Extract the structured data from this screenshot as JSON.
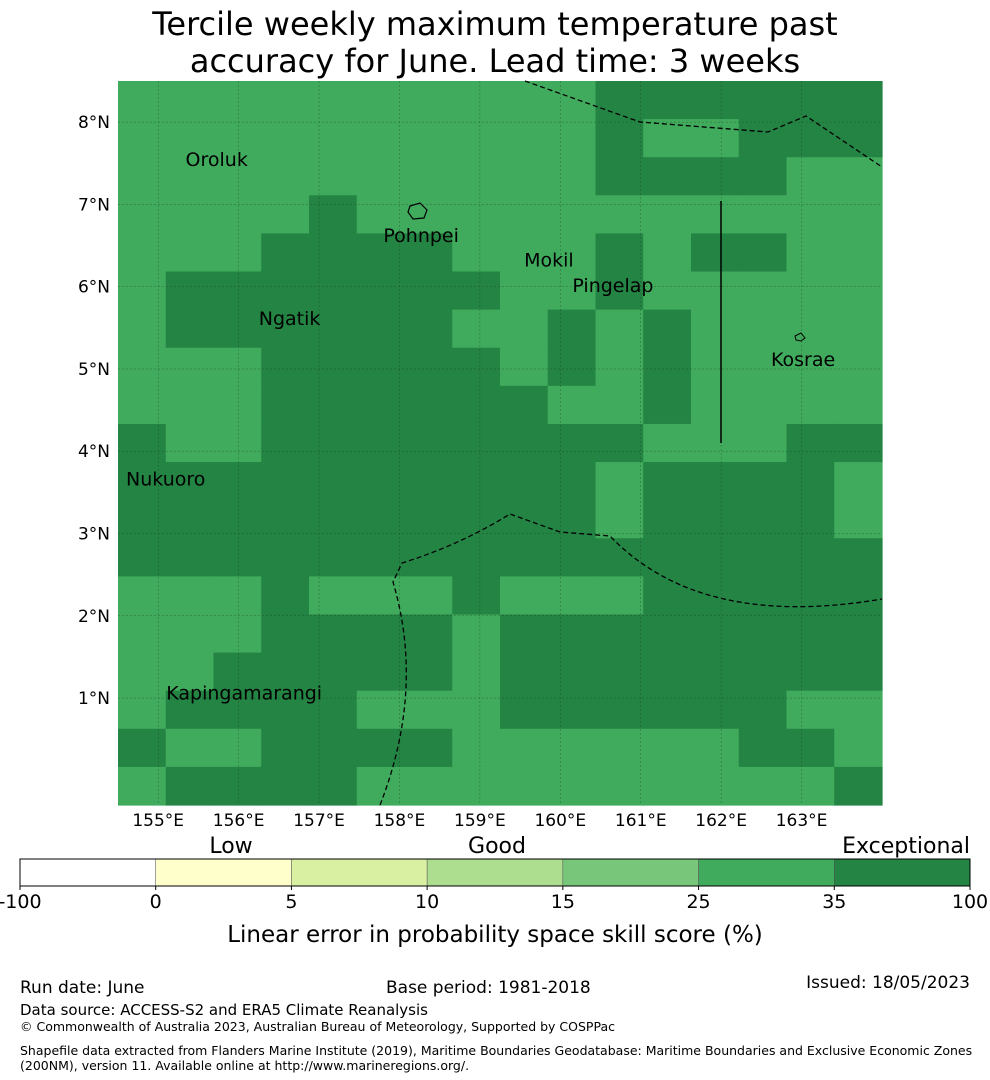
{
  "title_lines": [
    "Tercile weekly maximum temperature past",
    "accuracy for June. Lead time: 3 weeks"
  ],
  "map": {
    "lon_ticks": [
      "155°E",
      "156°E",
      "157°E",
      "158°E",
      "159°E",
      "160°E",
      "161°E",
      "162°E",
      "163°E"
    ],
    "lat_ticks": [
      "1°N",
      "2°N",
      "3°N",
      "4°N",
      "5°N",
      "6°N",
      "7°N",
      "8°N"
    ],
    "places": [
      {
        "name": "Oroluk",
        "lon": 155.34,
        "lat": 7.55
      },
      {
        "name": "Pohnpei",
        "lon": 157.8,
        "lat": 6.63
      },
      {
        "name": "Mokil",
        "lon": 159.55,
        "lat": 6.33
      },
      {
        "name": "Pingelap",
        "lon": 160.15,
        "lat": 6.02
      },
      {
        "name": "Ngatik",
        "lon": 156.25,
        "lat": 5.62
      },
      {
        "name": "Kosrae",
        "lon": 162.62,
        "lat": 5.12
      },
      {
        "name": "Nukuoro",
        "lon": 154.6,
        "lat": 3.67
      },
      {
        "name": "Kapingamarangi",
        "lon": 155.1,
        "lat": 1.07
      }
    ],
    "colors": {
      "good": "#41ab5d",
      "exceptional": "#238443"
    },
    "grid_rows_top_to_bottom": [
      "GGGGGGGGGGEEEEEE",
      "GGGGGGGGGGEGGEEE",
      "GGGGGGGGGGEEEEGG",
      "GGGGEGGGGGGGGGGG",
      "GGGEEEEGGGEGEEGG",
      "GEEEEEEEGGEGGGGG",
      "GEEEEEEGGEGEGGGG",
      "GGGEEEEEGEGEGGGG",
      "GGGEEEEEEGGEGGGG",
      "EGGEEEEEEEEGGGEE",
      "EEEEEEEEEEGEEEEG",
      "EEEEEEEEEEGEEEEG",
      "EEEEEEEEEEEEEEEE",
      "GGGEGGGEGGGEEEEE",
      "GGGEEEEGEEEEEEEE",
      "GGEEEEEGEEEEEEEE",
      "GEEEEGGGEEEEEEGG",
      "EGGEEEEGGGGGGEEG",
      "GEEEEGGGGGGGGGGE"
    ]
  },
  "legend": {
    "category_labels": [
      "Low",
      "Good",
      "Exceptional"
    ],
    "tick_labels": [
      "-100",
      "0",
      "5",
      "10",
      "15",
      "25",
      "35",
      "100"
    ],
    "bins": [
      {
        "from": -100,
        "to": 0,
        "color": "#ffffff"
      },
      {
        "from": 0,
        "to": 5,
        "color": "#ffffcc"
      },
      {
        "from": 5,
        "to": 10,
        "color": "#d9f0a3"
      },
      {
        "from": 10,
        "to": 15,
        "color": "#addd8e"
      },
      {
        "from": 15,
        "to": 25,
        "color": "#78c679"
      },
      {
        "from": 25,
        "to": 35,
        "color": "#41ab5d"
      },
      {
        "from": 35,
        "to": 100,
        "color": "#238443"
      }
    ],
    "title": "Linear error in probability space skill score (%)"
  },
  "footer": {
    "run_date": "Run date: June",
    "base_period": "Base period: 1981-2018",
    "issued": "Issued: 18/05/2023",
    "data_source": "Data source: ACCESS-S2 and ERA5 Climate Reanalysis",
    "copyright": "© Commonwealth of Australia 2023, Australian Bureau of Meteorology, Supported by COSPPac",
    "shapefile_line1": "Shapefile data extracted from Flanders Marine Institute (2019), Maritime Boundaries Geodatabase: Maritime Boundaries and Exclusive Economic Zones",
    "shapefile_line2": "(200NM), version 11. Available online at http://www.marineregions.org/."
  }
}
